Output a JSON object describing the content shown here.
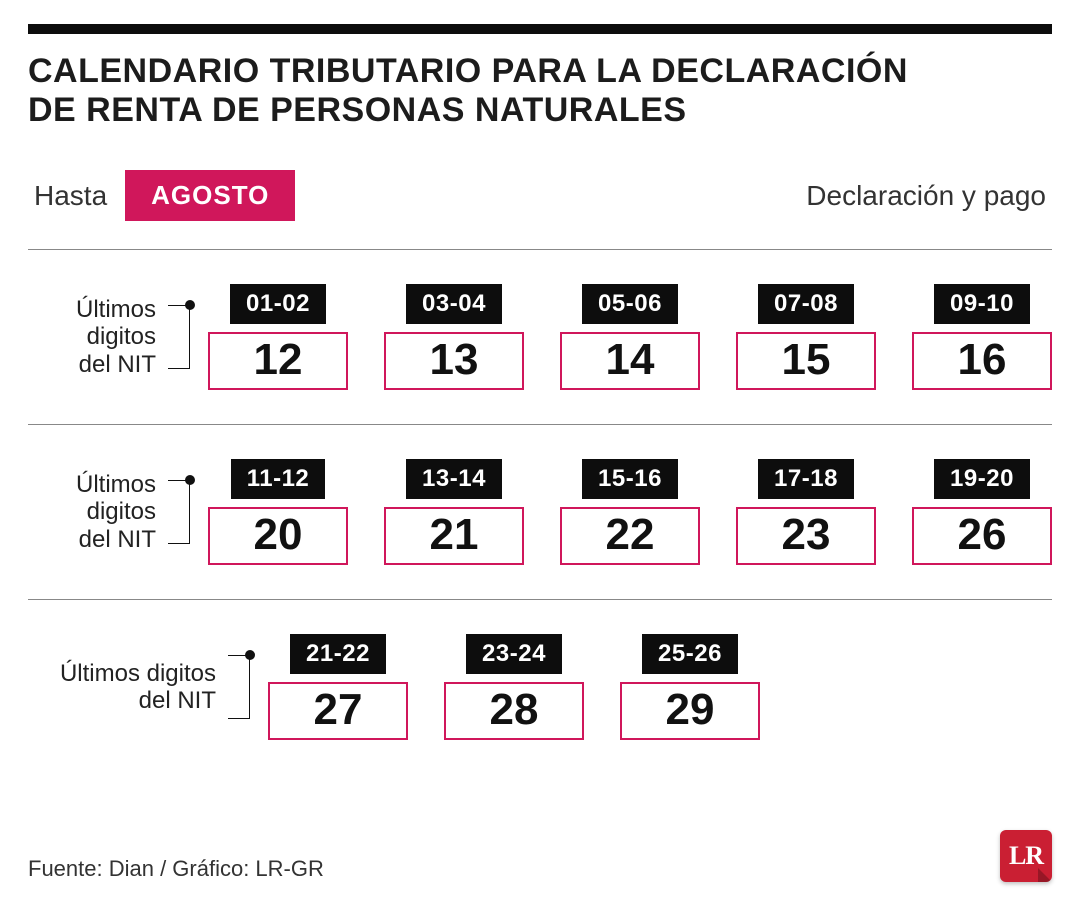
{
  "title_line1": "CALENDARIO TRIBUTARIO PARA LA DECLARACIÓN",
  "title_line2": "DE RENTA DE PERSONAS NATURALES",
  "header": {
    "hasta": "Hasta",
    "month": "AGOSTO",
    "declaration": "Declaración y pago"
  },
  "row_label_line1": "Últimos digitos",
  "row_label_line2": "del NIT",
  "rows": [
    {
      "cells": [
        {
          "tag": "01-02",
          "value": "12"
        },
        {
          "tag": "03-04",
          "value": "13"
        },
        {
          "tag": "05-06",
          "value": "14"
        },
        {
          "tag": "07-08",
          "value": "15"
        },
        {
          "tag": "09-10",
          "value": "16"
        }
      ]
    },
    {
      "cells": [
        {
          "tag": "11-12",
          "value": "20"
        },
        {
          "tag": "13-14",
          "value": "21"
        },
        {
          "tag": "15-16",
          "value": "22"
        },
        {
          "tag": "17-18",
          "value": "23"
        },
        {
          "tag": "19-20",
          "value": "26"
        }
      ]
    },
    {
      "cells": [
        {
          "tag": "21-22",
          "value": "27"
        },
        {
          "tag": "23-24",
          "value": "28"
        },
        {
          "tag": "25-26",
          "value": "29"
        }
      ]
    }
  ],
  "footer": {
    "source": "Fuente: Dian / Gráfico: LR-GR",
    "logo_text": "LR"
  },
  "colors": {
    "top_bar": "#0d0d0d",
    "month_bg": "#d0175b",
    "tag_bg": "#0d0d0d",
    "value_border": "#d0175b",
    "logo_bg": "#ca1f33",
    "divider": "#888888",
    "text": "#1a1a1a"
  }
}
